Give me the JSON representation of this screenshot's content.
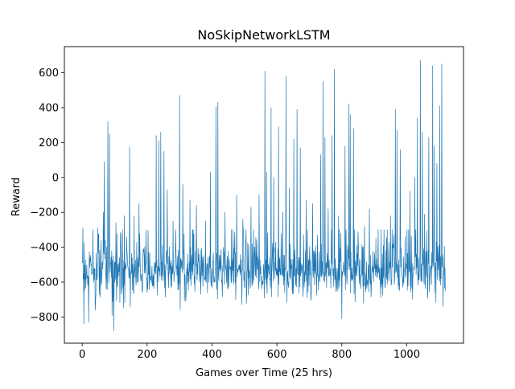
{
  "chart_data": {
    "type": "line",
    "title": "NoSkipNetworkLSTM",
    "xlabel": "Games over Time (25 hrs)",
    "ylabel": "Reward",
    "xlim": [
      -55,
      1175
    ],
    "ylim": [
      -950,
      750
    ],
    "x_ticks": [
      0,
      200,
      400,
      600,
      800,
      1000
    ],
    "y_ticks": [
      -800,
      -600,
      -400,
      -200,
      0,
      200,
      400,
      600
    ],
    "x_tick_labels": [
      "0",
      "200",
      "400",
      "600",
      "800",
      "1000"
    ],
    "y_tick_labels": [
      "−800",
      "−600",
      "−400",
      "−200",
      "0",
      "200",
      "400",
      "600"
    ],
    "grid": false,
    "line_color": "#1f77b4",
    "series": [
      {
        "name": "reward",
        "n_points": 1120,
        "baseline_mean": -540,
        "baseline_spread": 110,
        "noise_min": -890,
        "noise_max": -300,
        "seed": 7,
        "spikes": [
          {
            "x": 2,
            "y": -290
          },
          {
            "x": 5,
            "y": -840
          },
          {
            "x": 20,
            "y": -830
          },
          {
            "x": 40,
            "y": -760
          },
          {
            "x": 48,
            "y": -290
          },
          {
            "x": 65,
            "y": -200
          },
          {
            "x": 68,
            "y": 90
          },
          {
            "x": 79,
            "y": 320
          },
          {
            "x": 84,
            "y": 250
          },
          {
            "x": 92,
            "y": -790
          },
          {
            "x": 97,
            "y": -880
          },
          {
            "x": 104,
            "y": -260
          },
          {
            "x": 119,
            "y": -330
          },
          {
            "x": 130,
            "y": -220
          },
          {
            "x": 146,
            "y": 175
          },
          {
            "x": 160,
            "y": -220
          },
          {
            "x": 175,
            "y": -150
          },
          {
            "x": 228,
            "y": 240
          },
          {
            "x": 236,
            "y": 210
          },
          {
            "x": 242,
            "y": 260
          },
          {
            "x": 252,
            "y": 150
          },
          {
            "x": 262,
            "y": -70
          },
          {
            "x": 280,
            "y": -250
          },
          {
            "x": 300,
            "y": 470
          },
          {
            "x": 310,
            "y": -40
          },
          {
            "x": 332,
            "y": -130
          },
          {
            "x": 352,
            "y": -160
          },
          {
            "x": 380,
            "y": -250
          },
          {
            "x": 395,
            "y": 30
          },
          {
            "x": 412,
            "y": 405
          },
          {
            "x": 418,
            "y": 430
          },
          {
            "x": 440,
            "y": -200
          },
          {
            "x": 460,
            "y": -300
          },
          {
            "x": 476,
            "y": -100
          },
          {
            "x": 495,
            "y": -240
          },
          {
            "x": 520,
            "y": -170
          },
          {
            "x": 545,
            "y": -100
          },
          {
            "x": 563,
            "y": 610
          },
          {
            "x": 568,
            "y": 30
          },
          {
            "x": 582,
            "y": 400
          },
          {
            "x": 590,
            "y": 0
          },
          {
            "x": 605,
            "y": 290
          },
          {
            "x": 618,
            "y": -200
          },
          {
            "x": 628,
            "y": 580
          },
          {
            "x": 638,
            "y": -60
          },
          {
            "x": 652,
            "y": 220
          },
          {
            "x": 662,
            "y": 390
          },
          {
            "x": 672,
            "y": 170
          },
          {
            "x": 690,
            "y": -130
          },
          {
            "x": 710,
            "y": -150
          },
          {
            "x": 725,
            "y": -330
          },
          {
            "x": 735,
            "y": 130
          },
          {
            "x": 742,
            "y": 550
          },
          {
            "x": 748,
            "y": 230
          },
          {
            "x": 758,
            "y": -180
          },
          {
            "x": 770,
            "y": 240
          },
          {
            "x": 777,
            "y": 620
          },
          {
            "x": 790,
            "y": -220
          },
          {
            "x": 800,
            "y": -810
          },
          {
            "x": 810,
            "y": 180
          },
          {
            "x": 822,
            "y": 420
          },
          {
            "x": 826,
            "y": 360
          },
          {
            "x": 836,
            "y": 280
          },
          {
            "x": 850,
            "y": -310
          },
          {
            "x": 870,
            "y": -280
          },
          {
            "x": 885,
            "y": -180
          },
          {
            "x": 905,
            "y": -350
          },
          {
            "x": 930,
            "y": -300
          },
          {
            "x": 950,
            "y": -220
          },
          {
            "x": 965,
            "y": 390
          },
          {
            "x": 970,
            "y": 270
          },
          {
            "x": 980,
            "y": 160
          },
          {
            "x": 995,
            "y": -340
          },
          {
            "x": 1010,
            "y": -80
          },
          {
            "x": 1025,
            "y": 0
          },
          {
            "x": 1033,
            "y": 340
          },
          {
            "x": 1042,
            "y": 670
          },
          {
            "x": 1048,
            "y": 260
          },
          {
            "x": 1055,
            "y": -210
          },
          {
            "x": 1068,
            "y": 230
          },
          {
            "x": 1080,
            "y": 640
          },
          {
            "x": 1085,
            "y": 180
          },
          {
            "x": 1093,
            "y": 80
          },
          {
            "x": 1102,
            "y": 410
          },
          {
            "x": 1108,
            "y": 650
          },
          {
            "x": 1112,
            "y": -740
          }
        ]
      }
    ]
  }
}
